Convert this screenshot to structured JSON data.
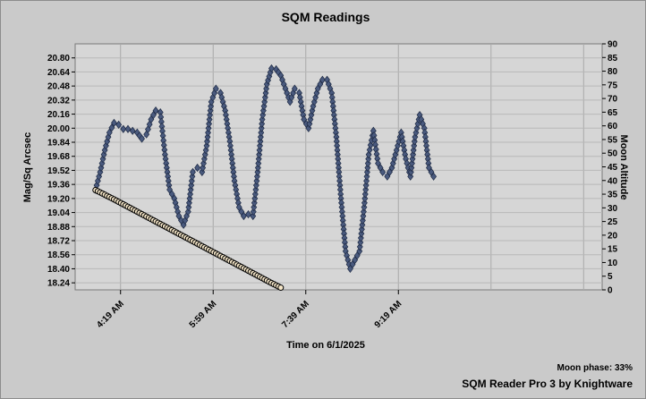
{
  "chart_data": {
    "type": "scatter",
    "title": "SQM Readings",
    "xlabel": "Time on 6/1/2025",
    "ylabel": "Mag/Sq Arcsec",
    "y2label": "Moon Altitude",
    "xlim": [
      "3:30 AM",
      "12:59 PM"
    ],
    "ylim": [
      18.16,
      20.96
    ],
    "y2lim": [
      0,
      90
    ],
    "x_ticks": [
      "4:19 AM",
      "5:59 AM",
      "7:39 AM",
      "9:19 AM"
    ],
    "y_ticks": [
      "20.80",
      "20.64",
      "20.48",
      "20.32",
      "20.16",
      "20.00",
      "19.84",
      "19.68",
      "19.52",
      "19.36",
      "19.20",
      "19.04",
      "18.88",
      "18.72",
      "18.56",
      "18.40",
      "18.24"
    ],
    "y2_ticks": [
      "90",
      "85",
      "80",
      "75",
      "70",
      "65",
      "60",
      "55",
      "50",
      "45",
      "40",
      "35",
      "30",
      "25",
      "20",
      "15",
      "10",
      "5",
      "0"
    ],
    "grid": true,
    "colors": {
      "sqm_marker": "#4a5a7e",
      "sqm_line": "#6b7fb0",
      "moon_marker_fill": "#f5e6c8",
      "moon_marker_edge": "#000000",
      "plot_bg": "#d6d6d6"
    },
    "series": [
      {
        "axis": "left",
        "marker": "diamond",
        "points": [
          [
            "3:52 AM",
            19.3
          ],
          [
            "3:57 AM",
            19.5
          ],
          [
            "4:02 AM",
            19.75
          ],
          [
            "4:07 AM",
            19.95
          ],
          [
            "4:12 AM",
            20.06
          ],
          [
            "4:17 AM",
            20.04
          ],
          [
            "4:22 AM",
            19.99
          ],
          [
            "4:27 AM",
            19.99
          ],
          [
            "4:32 AM",
            19.97
          ],
          [
            "4:37 AM",
            19.95
          ],
          [
            "4:42 AM",
            19.88
          ],
          [
            "4:47 AM",
            19.93
          ],
          [
            "4:52 AM",
            20.1
          ],
          [
            "4:57 AM",
            20.2
          ],
          [
            "5:02 AM",
            20.18
          ],
          [
            "5:07 AM",
            19.7
          ],
          [
            "5:12 AM",
            19.3
          ],
          [
            "5:17 AM",
            19.2
          ],
          [
            "5:22 AM",
            19.0
          ],
          [
            "5:27 AM",
            18.9
          ],
          [
            "5:32 AM",
            19.05
          ],
          [
            "5:37 AM",
            19.5
          ],
          [
            "5:42 AM",
            19.55
          ],
          [
            "5:47 AM",
            19.5
          ],
          [
            "5:52 AM",
            19.8
          ],
          [
            "5:57 AM",
            20.3
          ],
          [
            "6:02 AM",
            20.45
          ],
          [
            "6:07 AM",
            20.4
          ],
          [
            "6:12 AM",
            20.2
          ],
          [
            "6:17 AM",
            19.85
          ],
          [
            "6:22 AM",
            19.4
          ],
          [
            "6:27 AM",
            19.1
          ],
          [
            "6:32 AM",
            19.0
          ],
          [
            "6:37 AM",
            19.02
          ],
          [
            "6:42 AM",
            19.0
          ],
          [
            "6:47 AM",
            19.5
          ],
          [
            "6:52 AM",
            20.1
          ],
          [
            "6:57 AM",
            20.5
          ],
          [
            "7:02 AM",
            20.68
          ],
          [
            "7:07 AM",
            20.67
          ],
          [
            "7:12 AM",
            20.6
          ],
          [
            "7:17 AM",
            20.45
          ],
          [
            "7:22 AM",
            20.3
          ],
          [
            "7:27 AM",
            20.45
          ],
          [
            "7:32 AM",
            20.4
          ],
          [
            "7:37 AM",
            20.1
          ],
          [
            "7:42 AM",
            20.0
          ],
          [
            "7:47 AM",
            20.25
          ],
          [
            "7:52 AM",
            20.45
          ],
          [
            "7:57 AM",
            20.55
          ],
          [
            "8:02 AM",
            20.55
          ],
          [
            "8:07 AM",
            20.4
          ],
          [
            "8:12 AM",
            19.9
          ],
          [
            "8:17 AM",
            19.2
          ],
          [
            "8:22 AM",
            18.6
          ],
          [
            "8:27 AM",
            18.4
          ],
          [
            "8:32 AM",
            18.5
          ],
          [
            "8:37 AM",
            18.6
          ],
          [
            "8:42 AM",
            19.1
          ],
          [
            "8:47 AM",
            19.7
          ],
          [
            "8:52 AM",
            19.97
          ],
          [
            "8:57 AM",
            19.6
          ],
          [
            "9:02 AM",
            19.5
          ],
          [
            "9:07 AM",
            19.45
          ],
          [
            "9:12 AM",
            19.55
          ],
          [
            "9:17 AM",
            19.75
          ],
          [
            "9:22 AM",
            19.95
          ],
          [
            "9:27 AM",
            19.65
          ],
          [
            "9:32 AM",
            19.45
          ],
          [
            "9:37 AM",
            19.9
          ],
          [
            "9:42 AM",
            20.15
          ],
          [
            "9:47 AM",
            20.0
          ],
          [
            "9:52 AM",
            19.55
          ],
          [
            "9:57 AM",
            19.45
          ]
        ]
      },
      {
        "axis": "right",
        "marker": "circle",
        "points": [
          [
            "3:52 AM",
            36.5
          ],
          [
            "4:02 AM",
            34.8
          ],
          [
            "4:12 AM",
            33.1
          ],
          [
            "4:22 AM",
            31.3
          ],
          [
            "4:32 AM",
            29.5
          ],
          [
            "4:42 AM",
            27.7
          ],
          [
            "4:52 AM",
            25.9
          ],
          [
            "5:02 AM",
            24.1
          ],
          [
            "5:12 AM",
            22.3
          ],
          [
            "5:22 AM",
            20.5
          ],
          [
            "5:32 AM",
            18.7
          ],
          [
            "5:42 AM",
            16.9
          ],
          [
            "5:52 AM",
            15.1
          ],
          [
            "6:02 AM",
            13.3
          ],
          [
            "6:12 AM",
            11.5
          ],
          [
            "6:22 AM",
            9.7
          ],
          [
            "6:32 AM",
            7.9
          ],
          [
            "6:42 AM",
            6.1
          ],
          [
            "6:52 AM",
            4.3
          ],
          [
            "7:02 AM",
            2.5
          ],
          [
            "7:12 AM",
            0.8
          ]
        ]
      }
    ],
    "footer": {
      "moon_phase": "Moon phase: 33%",
      "credit": "SQM Reader Pro 3 by Knightware"
    }
  }
}
